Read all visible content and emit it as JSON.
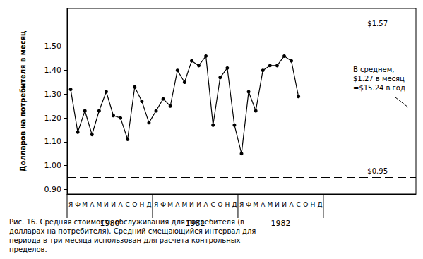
{
  "chart_data": {
    "type": "line",
    "title": "Рис. 16. Средняя стоимость обслуживания для потребителя (в долларах на потребителя). Средний смещающийся интервал для периода в три месяца использован для расчета контрольных пределов.",
    "y_label": "Долларов на потребителя в месяц",
    "categories": [
      "Я",
      "Ф",
      "М",
      "А",
      "М",
      "И",
      "И",
      "А",
      "С",
      "О",
      "Н",
      "Д",
      "Я",
      "Ф",
      "М",
      "А",
      "М",
      "И",
      "И",
      "А",
      "С",
      "О",
      "Н",
      "Д",
      "Я",
      "Ф",
      "М",
      "А",
      "М",
      "И",
      "И",
      "А",
      "С",
      "О",
      "Н",
      "Д",
      null,
      null,
      null,
      null,
      null,
      null,
      null,
      null,
      null,
      null,
      null,
      null,
      null
    ],
    "values": [
      1.32,
      1.14,
      1.23,
      1.13,
      1.23,
      1.31,
      1.21,
      1.2,
      1.11,
      1.33,
      1.27,
      1.18,
      1.23,
      1.28,
      1.25,
      1.4,
      1.35,
      1.44,
      1.42,
      1.46,
      1.17,
      1.37,
      1.41,
      1.17,
      1.05,
      1.31,
      1.23,
      1.4,
      1.42,
      1.42,
      1.46,
      1.44,
      1.29,
      null,
      null,
      null,
      null,
      null,
      null,
      null,
      null,
      null,
      null,
      null,
      null,
      null,
      null,
      null,
      null
    ],
    "years": [
      "1980",
      "1981",
      "1982"
    ],
    "color": "#000000",
    "marker": "circle",
    "line_style": "solid",
    "ylim": [
      0.88,
      1.66
    ],
    "yticks": [
      {
        "value": 0.9,
        "label": "0.90"
      },
      {
        "value": 1.0,
        "label": "1.00"
      },
      {
        "value": 1.1,
        "label": "1.10"
      },
      {
        "value": 1.2,
        "label": "1.20"
      },
      {
        "value": 1.3,
        "label": "1.30"
      },
      {
        "value": 1.4,
        "label": "1.40"
      },
      {
        "value": 1.5,
        "label": "1.50"
      }
    ],
    "reference_lines": [
      {
        "value": 1.57,
        "label": "$1.57"
      },
      {
        "value": 0.95,
        "label": "$0.95"
      }
    ],
    "annotations": [
      "В среднем,",
      "$1.27 в месяц",
      "=$15.24 в год"
    ],
    "grid": false
  }
}
